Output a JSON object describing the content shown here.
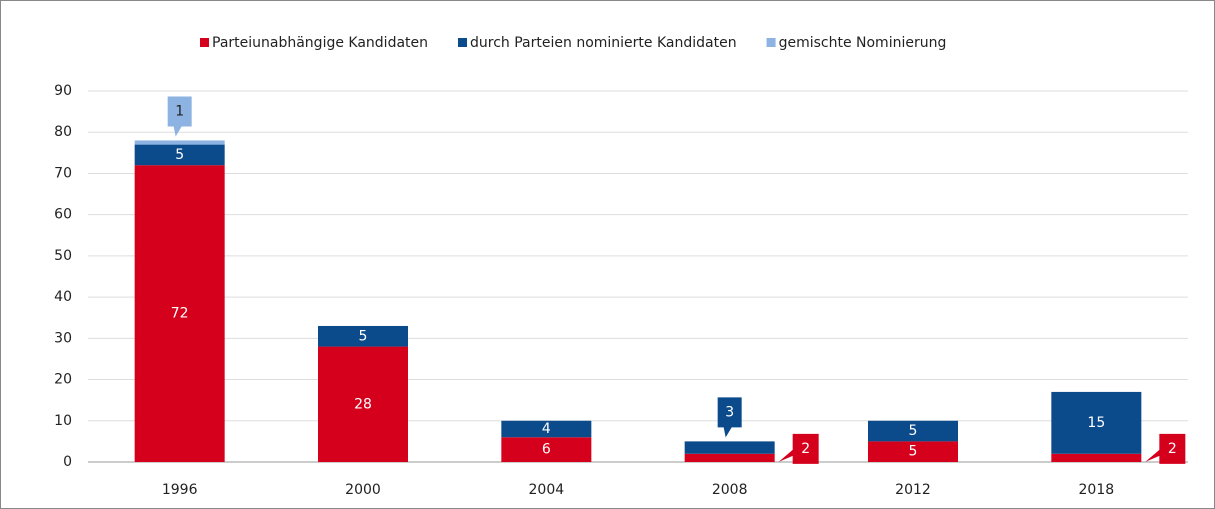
{
  "chart_data": {
    "type": "stacked_bar",
    "categories": [
      "1996",
      "2000",
      "2004",
      "2008",
      "2012",
      "2018"
    ],
    "series": [
      {
        "name": "Parteiunabhängige Kandidaten",
        "color": "#d5001c",
        "values": [
          72,
          28,
          6,
          2,
          5,
          2
        ]
      },
      {
        "name": "durch Parteien nominierte Kandidaten",
        "color": "#0b4a8b",
        "values": [
          5,
          5,
          4,
          3,
          5,
          15
        ]
      },
      {
        "name": "gemischte Nominierung",
        "color": "#8db3e2",
        "values": [
          1,
          null,
          null,
          null,
          null,
          null
        ]
      }
    ],
    "ylim": [
      0,
      90
    ],
    "yticks": [
      0,
      10,
      20,
      30,
      40,
      50,
      60,
      70,
      80,
      90
    ],
    "grid": true,
    "legend": "top"
  }
}
